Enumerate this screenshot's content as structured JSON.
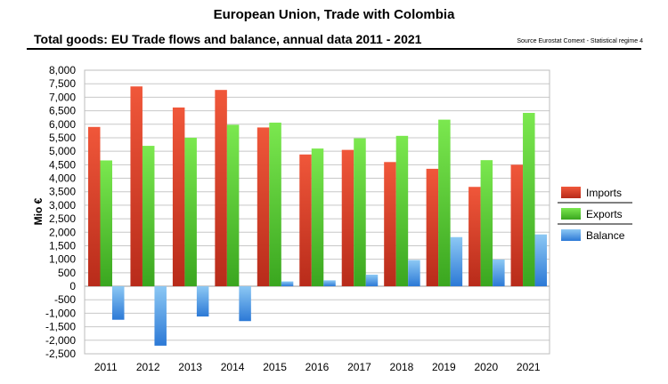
{
  "header": {
    "title": "European Union, Trade with Colombia",
    "subtitle": "Total goods: EU Trade flows and balance, annual data 2011 - 2021",
    "source": "Source Eurostat Comext  - Statistical regime 4"
  },
  "chart_data": {
    "type": "bar",
    "title": "European Union, Trade with Colombia",
    "subtitle": "Total goods: EU Trade flows and balance, annual data 2011 - 2021",
    "xlabel": "",
    "ylabel": "Mio €",
    "ylim": [
      -2500,
      8000
    ],
    "ytick_step": 500,
    "ytick_labels": [
      "8,000",
      "7,500",
      "7,000",
      "6,500",
      "6,000",
      "5,500",
      "5,000",
      "4,500",
      "4,000",
      "3,500",
      "3,000",
      "2,500",
      "2,000",
      "1,500",
      "1,000",
      "500",
      "0",
      "-500",
      "-1,000",
      "-1,500",
      "-2,000",
      "-2,500"
    ],
    "categories": [
      "2011",
      "2012",
      "2013",
      "2014",
      "2015",
      "2016",
      "2017",
      "2018",
      "2019",
      "2020",
      "2021"
    ],
    "series": [
      {
        "name": "Imports",
        "color": "#e8492f",
        "values": [
          5900,
          7400,
          6620,
          7270,
          5880,
          4880,
          5050,
          4600,
          4350,
          3680,
          4500
        ]
      },
      {
        "name": "Exports",
        "color": "#5fd63c",
        "values": [
          4660,
          5200,
          5500,
          5980,
          6060,
          5100,
          5480,
          5570,
          6170,
          4670,
          6420
        ]
      },
      {
        "name": "Balance",
        "color": "#4b9de8",
        "values": [
          -1240,
          -2200,
          -1120,
          -1290,
          180,
          220,
          430,
          970,
          1820,
          990,
          1920
        ]
      }
    ],
    "legend_position": "right",
    "grid": true
  }
}
